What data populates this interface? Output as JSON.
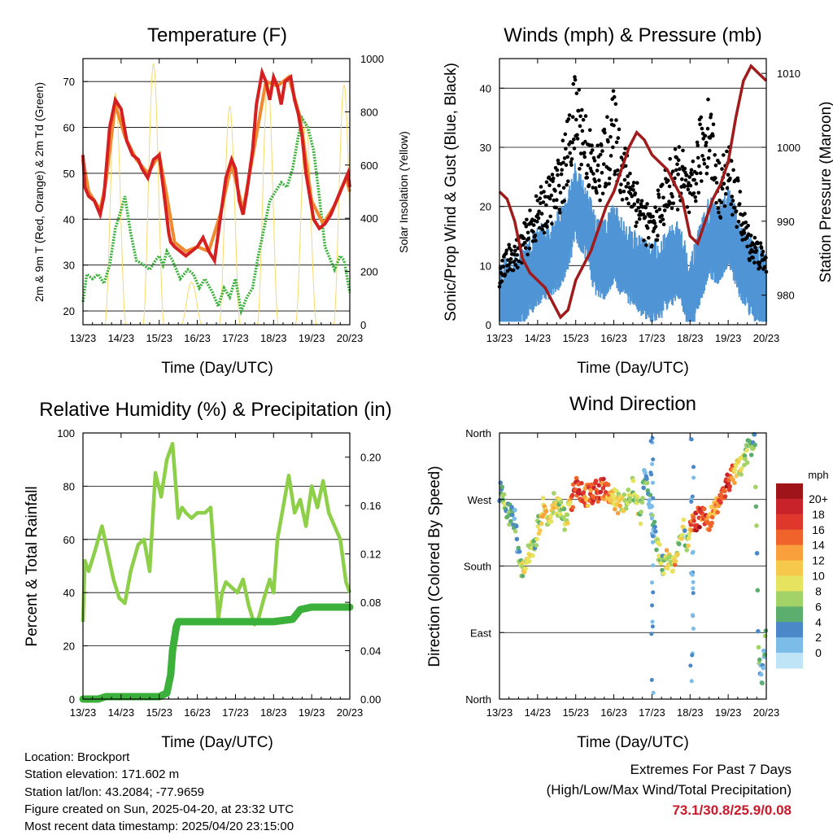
{
  "panels": {
    "temperature": {
      "title": "Temperature (F)",
      "xlabel": "Time (Day/UTC)",
      "ylabel_left": "2m & 9m T (Red, Orange) & 2m Td (Green)",
      "ylabel_right": "Solar Insolation (Yellow)"
    },
    "winds": {
      "title": "Winds (mph) & Pressure (mb)",
      "xlabel": "Time (Day/UTC)",
      "ylabel_left": "Sonic/Prop Wind & Gust (Blue, Black)",
      "ylabel_right": "Station Pressure (Maroon)"
    },
    "humidity": {
      "title": "Relative Humidity (%) & Precipitation (in)",
      "xlabel": "Time (Day/UTC)",
      "ylabel_left": "Percent & Total Rainfall"
    },
    "direction": {
      "title": "Wind Direction",
      "xlabel": "Time (Day/UTC)",
      "ylabel_left": "Direction (Colored By Speed)",
      "colorbar_title": "mph"
    }
  },
  "info": {
    "location": "Location: Brockport",
    "elevation": "Station elevation: 171.602 m",
    "latlon": "Station lat/lon: 43.2084; -77.9659",
    "created": "Figure created on Sun, 2025-04-20, at 23:32 UTC",
    "recent": "Most recent data timestamp: 2025/04/20 23:15:00"
  },
  "extremes": {
    "heading": "Extremes For Past 7 Days",
    "subheading": "(High/Low/Max Wind/Total Precipitation)",
    "values": "73.1/30.8/25.9/0.08"
  },
  "colors": {
    "temp_2m": "#d42020",
    "temp_9m": "#f08a30",
    "dewpoint": "#3bb03b",
    "solar": "#f7d96a",
    "gust": "#000000",
    "wind": "#4f94d4",
    "pressure": "#a01c1c",
    "rh": "#8ecf4a",
    "precip": "#3bb03b"
  },
  "chart_data": [
    {
      "type": "line",
      "title": "Temperature (F)",
      "xlabel": "Time (Day/UTC)",
      "ylabel": "2m & 9m T (Red, Orange) & 2m Td (Green)",
      "ylabel_right": "Solar Insolation (Yellow)",
      "x_ticks": [
        "13/23",
        "14/23",
        "15/23",
        "16/23",
        "17/23",
        "18/23",
        "19/23",
        "20/23"
      ],
      "ylim": [
        17,
        75
      ],
      "y_ticks": [
        20,
        30,
        40,
        50,
        60,
        70
      ],
      "ylim_right": [
        0,
        1000
      ],
      "y_ticks_right": [
        0,
        200,
        400,
        600,
        800,
        1000
      ],
      "grid": true,
      "series": [
        {
          "name": "2m T",
          "axis": "left",
          "color": "#d42020",
          "x": [
            0,
            0.05,
            0.15,
            0.3,
            0.45,
            0.55,
            0.7,
            0.85,
            1,
            1.15,
            1.3,
            1.45,
            1.55,
            1.7,
            1.85,
            2,
            2.15,
            2.25,
            2.3,
            2.4,
            2.55,
            2.7,
            3,
            3.15,
            3.3,
            3.45,
            3.6,
            3.75,
            3.9,
            4,
            4.1,
            4.2,
            4.3,
            4.45,
            4.55,
            4.7,
            4.8,
            4.9,
            5,
            5.1,
            5.2,
            5.3,
            5.45,
            5.55,
            5.65,
            5.75,
            5.85,
            5.95,
            6.05,
            6.2,
            6.35,
            6.5,
            6.65,
            6.8,
            6.95,
            7
          ],
          "y": [
            54,
            47,
            45,
            44,
            41,
            45,
            60,
            66,
            64,
            57,
            54,
            53,
            51,
            49,
            53,
            54,
            44,
            37,
            35,
            34,
            33,
            32,
            34,
            36,
            33,
            31,
            40,
            49,
            53,
            51,
            44,
            41,
            46,
            55,
            65,
            72,
            70,
            66,
            71,
            69,
            65,
            70,
            71,
            66,
            63,
            58,
            50,
            45,
            40,
            38,
            39,
            41,
            44,
            47,
            50,
            47
          ]
        },
        {
          "name": "9m T",
          "axis": "left",
          "color": "#f08a30",
          "x": [
            0,
            0.15,
            0.3,
            0.45,
            0.6,
            0.85,
            1.1,
            1.4,
            1.7,
            2,
            2.2,
            2.4,
            2.7,
            3,
            3.3,
            3.6,
            3.9,
            4.2,
            4.5,
            4.8,
            5.1,
            5.4,
            5.7,
            6,
            6.3,
            6.6,
            6.9,
            7
          ],
          "y": [
            53,
            46,
            44,
            42,
            48,
            65,
            58,
            53,
            50,
            54,
            45,
            35,
            33,
            34,
            33,
            41,
            52,
            42,
            56,
            70,
            69,
            71,
            62,
            44,
            39,
            43,
            49,
            46
          ]
        },
        {
          "name": "2m Td",
          "axis": "left",
          "color": "#3bb03b",
          "x": [
            0,
            0.1,
            0.25,
            0.4,
            0.55,
            0.7,
            0.85,
            1,
            1.1,
            1.25,
            1.4,
            1.6,
            1.75,
            1.9,
            2,
            2.1,
            2.2,
            2.35,
            2.55,
            2.75,
            2.9,
            3.05,
            3.2,
            3.4,
            3.55,
            3.7,
            3.85,
            4,
            4.15,
            4.3,
            4.45,
            4.6,
            4.75,
            4.9,
            5.05,
            5.2,
            5.35,
            5.5,
            5.65,
            5.75,
            5.9,
            6.05,
            6.2,
            6.35,
            6.5,
            6.6,
            6.75,
            6.85,
            7
          ],
          "y": [
            22,
            28,
            27,
            28,
            26,
            30,
            38,
            42,
            45,
            37,
            31,
            30,
            29,
            31,
            32,
            30,
            33,
            31,
            27,
            29,
            28,
            25,
            27,
            24,
            21,
            25,
            23,
            27,
            20,
            23,
            25,
            32,
            38,
            44,
            46,
            48,
            47,
            51,
            58,
            62,
            60,
            55,
            45,
            34,
            31,
            29,
            32,
            31,
            24
          ]
        },
        {
          "name": "Solar Insolation",
          "axis": "right",
          "color": "#f7d96a",
          "peaks_x": [
            0.85,
            1.85,
            2.85,
            3.85,
            4.85,
            5.85,
            6.85
          ],
          "peaks_y": [
            870,
            980,
            160,
            820,
            920,
            760,
            900
          ]
        }
      ]
    },
    {
      "type": "scatter",
      "title": "Winds (mph) & Pressure (mb)",
      "xlabel": "Time (Day/UTC)",
      "ylabel": "Sonic/Prop Wind & Gust (Blue, Black)",
      "ylabel_right": "Station Pressure (Maroon)",
      "x_ticks": [
        "13/23",
        "14/23",
        "15/23",
        "16/23",
        "17/23",
        "18/23",
        "19/23",
        "20/23"
      ],
      "ylim": [
        0,
        45
      ],
      "y_ticks": [
        0,
        10,
        20,
        30,
        40
      ],
      "ylim_right": [
        976,
        1012
      ],
      "y_ticks_right": [
        980,
        990,
        1000,
        1010
      ],
      "grid": true,
      "series": [
        {
          "name": "Gust",
          "color": "#000000",
          "x": [
            0,
            0.25,
            0.5,
            0.75,
            1,
            1.25,
            1.5,
            1.75,
            2,
            2.25,
            2.5,
            2.75,
            3,
            3.25,
            3.5,
            3.75,
            4,
            4.25,
            4.5,
            4.75,
            5,
            5.25,
            5.5,
            5.75,
            6,
            6.25,
            6.5,
            6.75,
            7
          ],
          "y": [
            8,
            11,
            12,
            15,
            18,
            20,
            22,
            27,
            35,
            30,
            24,
            27,
            32,
            25,
            22,
            18,
            15,
            20,
            23,
            25,
            20,
            28,
            33,
            22,
            25,
            20,
            14,
            12,
            10
          ]
        },
        {
          "name": "Wind",
          "color": "#4f94d4",
          "x": [
            0,
            0.25,
            0.5,
            0.75,
            1,
            1.25,
            1.5,
            1.75,
            2,
            2.25,
            2.5,
            2.75,
            3,
            3.25,
            3.5,
            3.75,
            4,
            4.25,
            4.5,
            4.75,
            5,
            5.25,
            5.5,
            5.75,
            6,
            6.25,
            6.5,
            6.75,
            7
          ],
          "y": [
            4,
            5,
            6,
            8,
            10,
            11,
            12,
            15,
            21,
            18,
            12,
            11,
            14,
            11,
            10,
            8,
            7,
            8,
            10,
            11,
            4,
            10,
            15,
            13,
            17,
            12,
            9,
            7,
            6
          ]
        },
        {
          "name": "Station Pressure",
          "axis": "right",
          "color": "#a01c1c",
          "x": [
            0,
            0.2,
            0.4,
            0.6,
            0.8,
            1,
            1.2,
            1.4,
            1.6,
            1.8,
            2,
            2.2,
            2.4,
            2.6,
            2.8,
            3,
            3.2,
            3.4,
            3.6,
            3.8,
            4,
            4.2,
            4.4,
            4.6,
            4.8,
            5,
            5.2,
            5.4,
            5.6,
            5.8,
            6,
            6.2,
            6.4,
            6.6,
            6.8,
            7
          ],
          "y": [
            994,
            993,
            990,
            985,
            983,
            982,
            981,
            979,
            977,
            978,
            982,
            984,
            986,
            989,
            992,
            994,
            997,
            1000,
            1002,
            1001,
            999,
            998,
            997,
            995,
            993,
            988,
            987,
            990,
            993,
            995,
            998,
            1004,
            1009,
            1011,
            1010,
            1009
          ]
        }
      ]
    },
    {
      "type": "line",
      "title": "Relative Humidity (%) & Precipitation (in)",
      "xlabel": "Time (Day/UTC)",
      "ylabel": "Percent & Total Rainfall",
      "x_ticks": [
        "13/23",
        "14/23",
        "15/23",
        "16/23",
        "17/23",
        "18/23",
        "19/23",
        "20/23"
      ],
      "ylim": [
        0,
        100
      ],
      "y_ticks": [
        0,
        20,
        40,
        60,
        80,
        100
      ],
      "ylim_right": [
        0,
        0.22
      ],
      "y_ticks_right": [
        "0.00",
        "0.04",
        "0.08",
        "0.12",
        "0.16",
        "0.20"
      ],
      "grid": true,
      "series": [
        {
          "name": "Relative Humidity",
          "axis": "left",
          "color": "#8ecf4a",
          "x": [
            0,
            0.05,
            0.15,
            0.3,
            0.5,
            0.65,
            0.8,
            0.95,
            1.1,
            1.25,
            1.45,
            1.6,
            1.75,
            1.9,
            2.05,
            2.2,
            2.35,
            2.5,
            2.6,
            2.7,
            2.85,
            3,
            3.2,
            3.35,
            3.45,
            3.55,
            3.65,
            3.75,
            3.9,
            4.05,
            4.2,
            4.35,
            4.5,
            4.6,
            4.75,
            4.9,
            5,
            5.1,
            5.25,
            5.4,
            5.55,
            5.7,
            5.85,
            6,
            6.15,
            6.3,
            6.45,
            6.6,
            6.75,
            6.9,
            7
          ],
          "y": [
            29,
            52,
            48,
            55,
            65,
            55,
            45,
            38,
            36,
            48,
            58,
            60,
            48,
            85,
            76,
            90,
            96,
            68,
            72,
            70,
            68,
            70,
            70,
            72,
            52,
            30,
            40,
            44,
            42,
            40,
            45,
            35,
            28,
            30,
            38,
            45,
            40,
            60,
            72,
            84,
            70,
            75,
            65,
            80,
            72,
            82,
            70,
            65,
            60,
            44,
            40
          ]
        },
        {
          "name": "Total Precipitation",
          "axis": "right",
          "color": "#3bb03b",
          "x": [
            0,
            0.4,
            0.6,
            2,
            2.2,
            2.3,
            2.35,
            2.45,
            2.5,
            3,
            3.5,
            4,
            4.5,
            5,
            5.5,
            5.6,
            5.7,
            6,
            6.5,
            7
          ],
          "y": [
            0,
            0,
            0.002,
            0.002,
            0.005,
            0.02,
            0.04,
            0.06,
            0.064,
            0.064,
            0.064,
            0.064,
            0.064,
            0.064,
            0.066,
            0.07,
            0.074,
            0.076,
            0.076,
            0.076
          ]
        }
      ]
    },
    {
      "type": "scatter",
      "title": "Wind Direction",
      "xlabel": "Time (Day/UTC)",
      "ylabel": "Direction (Colored By Speed)",
      "x_ticks": [
        "13/23",
        "14/23",
        "15/23",
        "16/23",
        "17/23",
        "18/23",
        "19/23",
        "20/23"
      ],
      "y_ticks": [
        "North",
        "East",
        "South",
        "West",
        "North"
      ],
      "y_tick_values": [
        0,
        90,
        180,
        270,
        360
      ],
      "grid": true,
      "colorbar": {
        "title": "mph",
        "labels": [
          "20+",
          "18",
          "16",
          "14",
          "12",
          "10",
          "8",
          "6",
          "4",
          "2",
          "0"
        ],
        "colors": [
          "#9e1418",
          "#c8232a",
          "#e0372c",
          "#f0642c",
          "#f9a03c",
          "#f6c84c",
          "#e6e45e",
          "#a2d268",
          "#5cae6e",
          "#4a88c8",
          "#7cbce8",
          "#bfe4f6"
        ]
      },
      "points": {
        "x": [
          0,
          0.2,
          0.4,
          0.5,
          0.6,
          0.75,
          0.9,
          1,
          1.15,
          1.3,
          1.45,
          1.6,
          1.75,
          1.9,
          2,
          2.15,
          2.3,
          2.5,
          2.7,
          2.9,
          3.1,
          3.3,
          3.5,
          3.6,
          3.7,
          3.8,
          3.9,
          4,
          4.1,
          4.2,
          4.3,
          4.4,
          4.5,
          4.6,
          4.7,
          4.8,
          4.9,
          5,
          5.1,
          5.2,
          5.35,
          5.5,
          5.65,
          5.8,
          5.95,
          6.1,
          6.25,
          6.4,
          6.55,
          6.7,
          6.8,
          6.9,
          7
        ],
        "y": [
          283,
          252,
          245,
          200,
          175,
          195,
          205,
          230,
          260,
          245,
          270,
          255,
          240,
          270,
          285,
          280,
          275,
          280,
          285,
          275,
          265,
          270,
          290,
          262,
          250,
          310,
          270,
          255,
          210,
          195,
          180,
          190,
          185,
          192,
          205,
          235,
          212,
          230,
          238,
          245,
          250,
          240,
          258,
          275,
          290,
          300,
          310,
          320,
          340,
          350,
          60,
          30,
          100
        ],
        "speed": [
          6,
          8,
          6,
          5,
          10,
          12,
          9,
          8,
          14,
          10,
          12,
          8,
          9,
          16,
          20,
          18,
          16,
          20,
          18,
          14,
          12,
          10,
          8,
          12,
          9,
          6,
          6,
          5,
          7,
          10,
          8,
          12,
          10,
          14,
          9,
          12,
          4,
          16,
          18,
          20,
          18,
          16,
          14,
          18,
          20,
          16,
          12,
          10,
          8,
          6,
          6,
          4,
          8
        ]
      }
    }
  ]
}
